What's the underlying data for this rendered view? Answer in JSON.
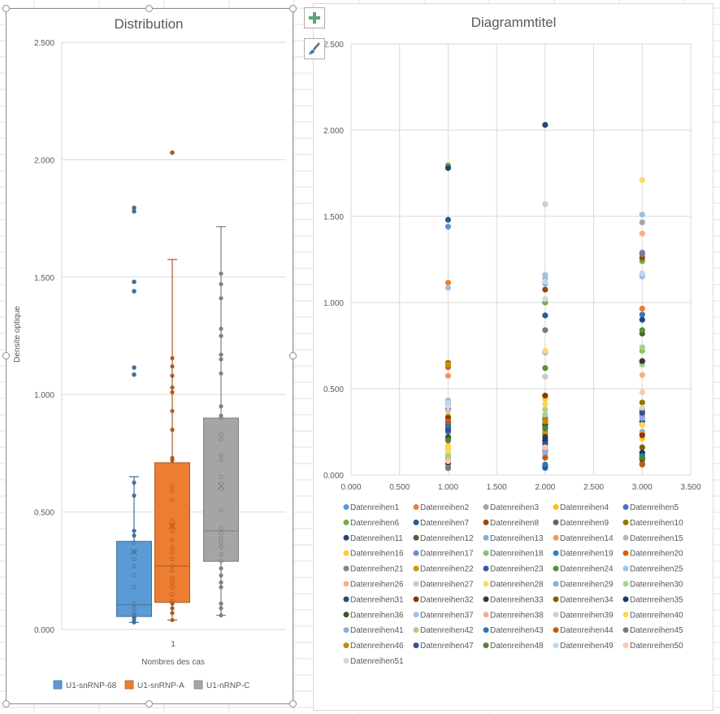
{
  "side_buttons": {
    "add_element": "chart-elements",
    "style": "chart-styles"
  },
  "chart_data": [
    {
      "type": "box",
      "title": "Distribution",
      "xlabel": "Nombres des cas",
      "ylabel": "Densite optique",
      "categories": [
        "1"
      ],
      "ylim": [
        0,
        2.5
      ],
      "yticks": [
        "0.000",
        "0.500",
        "1.000",
        "1.500",
        "2.000",
        "2.500"
      ],
      "grid": true,
      "legend_position": "bottom",
      "series": [
        {
          "name": "U1-snRNP-68",
          "color": "#5b9bd5",
          "stroke": "#41719c",
          "min": 0.03,
          "q1": 0.055,
          "median": 0.105,
          "q3": 0.375,
          "max": 0.65,
          "mean": 0.33,
          "outliers": [
            1.085,
            1.115,
            1.44,
            1.48,
            1.78,
            1.795
          ],
          "points": [
            0.03,
            0.04,
            0.05,
            0.06,
            0.07,
            0.09,
            0.11,
            0.18,
            0.23,
            0.27,
            0.3,
            0.33,
            0.37,
            0.4,
            0.42,
            0.57,
            0.625
          ]
        },
        {
          "name": "U1-snRNP-A",
          "color": "#ed7d31",
          "stroke": "#ae5a21",
          "min": 0.04,
          "q1": 0.115,
          "median": 0.27,
          "q3": 0.71,
          "max": 1.575,
          "mean": 0.44,
          "outliers": [
            2.03
          ],
          "points": [
            0.04,
            0.07,
            0.09,
            0.11,
            0.12,
            0.15,
            0.18,
            0.2,
            0.22,
            0.25,
            0.27,
            0.3,
            0.33,
            0.35,
            0.38,
            0.42,
            0.44,
            0.46,
            0.55,
            0.59,
            0.61,
            0.72,
            0.73,
            0.85,
            0.93,
            1.01,
            1.03,
            1.08,
            1.12,
            1.155
          ]
        },
        {
          "name": "U1-nRNP-C",
          "color": "#a5a5a5",
          "stroke": "#7f7f7f",
          "min": 0.06,
          "q1": 0.29,
          "median": 0.42,
          "q3": 0.9,
          "max": 1.715,
          "mean": 0.61,
          "outliers": [],
          "points": [
            0.06,
            0.09,
            0.11,
            0.18,
            0.2,
            0.23,
            0.26,
            0.29,
            0.32,
            0.35,
            0.37,
            0.39,
            0.41,
            0.43,
            0.51,
            0.6,
            0.62,
            0.65,
            0.72,
            0.74,
            0.81,
            0.83,
            0.9,
            0.91,
            0.95,
            1.09,
            1.15,
            1.17,
            1.25,
            1.28,
            1.41,
            1.47,
            1.515
          ]
        }
      ]
    },
    {
      "type": "scatter",
      "title": "Diagrammtitel",
      "xlabel": "",
      "ylabel": "",
      "xlim": [
        0,
        3.5
      ],
      "ylim": [
        0,
        2.5
      ],
      "xticks": [
        "0.000",
        "0.500",
        "1.000",
        "1.500",
        "2.000",
        "2.500",
        "3.000",
        "3.500"
      ],
      "yticks": [
        "0.000",
        "0.500",
        "1.000",
        "1.500",
        "2.000",
        "2.500"
      ],
      "grid": true,
      "legend_position": "bottom",
      "series": [
        {
          "name": "Datenreihen1",
          "color": "#5b9bd5",
          "points": [
            [
              1,
              0.15
            ],
            [
              2,
              0.33
            ],
            [
              3,
              0.35
            ]
          ]
        },
        {
          "name": "Datenreihen2",
          "color": "#ed7d31",
          "points": [
            [
              1,
              1.115
            ],
            [
              2,
              0.3
            ],
            [
              3,
              0.965
            ]
          ]
        },
        {
          "name": "Datenreihen3",
          "color": "#a5a5a5",
          "points": [
            [
              1,
              0.05
            ],
            [
              2,
              0.19
            ],
            [
              3,
              1.465
            ]
          ]
        },
        {
          "name": "Datenreihen4",
          "color": "#ffc000",
          "points": [
            [
              1,
              0.12
            ],
            [
              2,
              0.45
            ],
            [
              3,
              0.29
            ]
          ]
        },
        {
          "name": "Datenreihen5",
          "color": "#4472c4",
          "points": [
            [
              1,
              0.25
            ],
            [
              2,
              0.16
            ],
            [
              3,
              0.93
            ]
          ]
        },
        {
          "name": "Datenreihen6",
          "color": "#70ad47",
          "points": [
            [
              1,
              1.795
            ],
            [
              2,
              1.0
            ],
            [
              3,
              1.24
            ]
          ]
        },
        {
          "name": "Datenreihen7",
          "color": "#255e91",
          "points": [
            [
              1,
              1.48
            ],
            [
              2,
              0.925
            ],
            [
              3,
              0.37
            ]
          ]
        },
        {
          "name": "Datenreihen8",
          "color": "#9e480e",
          "points": [
            [
              1,
              0.29
            ],
            [
              2,
              1.075
            ],
            [
              3,
              1.26
            ]
          ]
        },
        {
          "name": "Datenreihen9",
          "color": "#636363",
          "points": [
            [
              1,
              0.07
            ],
            [
              2,
              0.24
            ],
            [
              3,
              0.66
            ]
          ]
        },
        {
          "name": "Datenreihen10",
          "color": "#997300",
          "points": [
            [
              1,
              0.65
            ],
            [
              2,
              0.27
            ],
            [
              3,
              0.42
            ]
          ]
        },
        {
          "name": "Datenreihen11",
          "color": "#264478",
          "points": [
            [
              1,
              1.78
            ],
            [
              2,
              2.03
            ],
            [
              3,
              0.9
            ]
          ]
        },
        {
          "name": "Datenreihen12",
          "color": "#43682b",
          "points": [
            [
              1,
              0.08
            ],
            [
              2,
              0.29
            ],
            [
              3,
              0.82
            ]
          ]
        },
        {
          "name": "Datenreihen13",
          "color": "#7cafdd",
          "points": [
            [
              1,
              0.43
            ],
            [
              2,
              1.11
            ],
            [
              3,
              0.25
            ]
          ]
        },
        {
          "name": "Datenreihen14",
          "color": "#f1975a",
          "points": [
            [
              1,
              0.575
            ],
            [
              2,
              0.21
            ],
            [
              3,
              0.24
            ]
          ]
        },
        {
          "name": "Datenreihen15",
          "color": "#b7b7b7",
          "points": [
            [
              1,
              0.38
            ],
            [
              2,
              1.14
            ],
            [
              3,
              1.16
            ]
          ]
        },
        {
          "name": "Datenreihen16",
          "color": "#ffcd33",
          "points": [
            [
              1,
              0.17
            ],
            [
              2,
              0.44
            ],
            [
              3,
              0.21
            ]
          ]
        },
        {
          "name": "Datenreihen17",
          "color": "#698ed0",
          "points": [
            [
              1,
              1.44
            ],
            [
              2,
              0.71
            ],
            [
              3,
              1.29
            ]
          ]
        },
        {
          "name": "Datenreihen18",
          "color": "#8cc168",
          "points": [
            [
              1,
              0.1
            ],
            [
              2,
              0.25
            ],
            [
              3,
              0.72
            ]
          ]
        },
        {
          "name": "Datenreihen19",
          "color": "#327dc2",
          "points": [
            [
              1,
              0.38
            ],
            [
              2,
              0.04
            ],
            [
              3,
              0.12
            ]
          ]
        },
        {
          "name": "Datenreihen20",
          "color": "#d26012",
          "points": [
            [
              1,
              0.625
            ],
            [
              2,
              0.32
            ],
            [
              3,
              0.065
            ]
          ]
        },
        {
          "name": "Datenreihen21",
          "color": "#848484",
          "points": [
            [
              1,
              0.04
            ],
            [
              2,
              0.12
            ],
            [
              3,
              0.66
            ]
          ]
        },
        {
          "name": "Datenreihen22",
          "color": "#cc9a00",
          "points": [
            [
              1,
              0.34
            ],
            [
              2,
              0.25
            ],
            [
              3,
              0.31
            ]
          ]
        },
        {
          "name": "Datenreihen23",
          "color": "#335aa1",
          "points": [
            [
              1,
              0.27
            ],
            [
              2,
              0.14
            ],
            [
              3,
              0.31
            ]
          ]
        },
        {
          "name": "Datenreihen24",
          "color": "#5a8f38",
          "points": [
            [
              1,
              0.21
            ],
            [
              2,
              0.62
            ],
            [
              3,
              0.84
            ]
          ]
        },
        {
          "name": "Datenreihen25",
          "color": "#9dc3e6",
          "points": [
            [
              1,
              0.42
            ],
            [
              2,
              0.71
            ],
            [
              3,
              1.15
            ]
          ]
        },
        {
          "name": "Datenreihen26",
          "color": "#f4b183",
          "points": [
            [
              1,
              0.09
            ],
            [
              2,
              0.1
            ],
            [
              3,
              0.58
            ]
          ]
        },
        {
          "name": "Datenreihen27",
          "color": "#c9c9c9",
          "points": [
            [
              1,
              0.37
            ],
            [
              2,
              0.57
            ],
            [
              3,
              0.35
            ]
          ]
        },
        {
          "name": "Datenreihen28",
          "color": "#ffd966",
          "points": [
            [
              1,
              0.14
            ],
            [
              2,
              0.72
            ],
            [
              3,
              1.71
            ]
          ]
        },
        {
          "name": "Datenreihen29",
          "color": "#8faadc",
          "points": [
            [
              1,
              0.06
            ],
            [
              2,
              0.15
            ],
            [
              3,
              0.33
            ]
          ]
        },
        {
          "name": "Datenreihen30",
          "color": "#a9d18e",
          "points": [
            [
              1,
              0.11
            ],
            [
              2,
              0.38
            ],
            [
              3,
              0.64
            ]
          ]
        },
        {
          "name": "Datenreihen31",
          "color": "#1f4e79",
          "points": [
            [
              1,
              0.3
            ],
            [
              2,
              0.05
            ],
            [
              3,
              0.1
            ]
          ]
        },
        {
          "name": "Datenreihen32",
          "color": "#843c0c",
          "points": [
            [
              1,
              0.33
            ],
            [
              2,
              0.46
            ],
            [
              3,
              0.23
            ]
          ]
        },
        {
          "name": "Datenreihen33",
          "color": "#3b3838",
          "points": [
            [
              1,
              0.07
            ],
            [
              2,
              0.22
            ],
            [
              3,
              0.66
            ]
          ]
        },
        {
          "name": "Datenreihen34",
          "color": "#7f6000",
          "points": [
            [
              1,
              0.41
            ],
            [
              2,
              0.27
            ],
            [
              3,
              0.16
            ]
          ]
        },
        {
          "name": "Datenreihen35",
          "color": "#203864",
          "points": [
            [
              1,
              0.08
            ],
            [
              2,
              0.2
            ],
            [
              3,
              0.13
            ]
          ]
        },
        {
          "name": "Datenreihen36",
          "color": "#385723",
          "points": [
            [
              1,
              0.22
            ],
            [
              2,
              0.29
            ],
            [
              3,
              0.09
            ]
          ]
        },
        {
          "name": "Datenreihen37",
          "color": "#9bc2e6",
          "points": [
            [
              1,
              1.085
            ],
            [
              2,
              1.16
            ],
            [
              3,
              1.51
            ]
          ]
        },
        {
          "name": "Datenreihen38",
          "color": "#f4b084",
          "points": [
            [
              1,
              0.1
            ],
            [
              2,
              0.12
            ],
            [
              3,
              1.4
            ]
          ]
        },
        {
          "name": "Datenreihen39",
          "color": "#d0cece",
          "points": [
            [
              1,
              0.31
            ],
            [
              2,
              1.57
            ],
            [
              3,
              0.37
            ]
          ]
        },
        {
          "name": "Datenreihen40",
          "color": "#ffd54f",
          "points": [
            [
              1,
              0.16
            ],
            [
              2,
              0.41
            ],
            [
              3,
              0.29
            ]
          ]
        },
        {
          "name": "Datenreihen41",
          "color": "#8eaadb",
          "points": [
            [
              1,
              0.09
            ],
            [
              2,
              0.13
            ],
            [
              3,
              0.34
            ]
          ]
        },
        {
          "name": "Datenreihen42",
          "color": "#a8d08d",
          "points": [
            [
              1,
              0.11
            ],
            [
              2,
              0.35
            ],
            [
              3,
              0.74
            ]
          ]
        },
        {
          "name": "Datenreihen43",
          "color": "#2e75b6",
          "points": [
            [
              1,
              0.28
            ],
            [
              2,
              0.06
            ],
            [
              3,
              0.11
            ]
          ]
        },
        {
          "name": "Datenreihen44",
          "color": "#c55a11",
          "points": [
            [
              1,
              0.31
            ],
            [
              2,
              0.1
            ],
            [
              3,
              0.06
            ]
          ]
        },
        {
          "name": "Datenreihen45",
          "color": "#7b7b7b",
          "points": [
            [
              1,
              0.04
            ],
            [
              2,
              0.84
            ],
            [
              3,
              1.28
            ]
          ]
        },
        {
          "name": "Datenreihen46",
          "color": "#bf9000",
          "points": [
            [
              1,
              0.64
            ],
            [
              2,
              0.31
            ],
            [
              3,
              0.38
            ]
          ]
        },
        {
          "name": "Datenreihen47",
          "color": "#2f5597",
          "points": [
            [
              1,
              0.26
            ],
            [
              2,
              0.18
            ],
            [
              3,
              0.36
            ]
          ]
        },
        {
          "name": "Datenreihen48",
          "color": "#548235",
          "points": [
            [
              1,
              0.2
            ],
            [
              2,
              0.27
            ],
            [
              3,
              0.1
            ]
          ]
        },
        {
          "name": "Datenreihen49",
          "color": "#bdd7ee",
          "points": [
            [
              1,
              0.42
            ],
            [
              2,
              1.12
            ],
            [
              3,
              1.17
            ]
          ]
        },
        {
          "name": "Datenreihen50",
          "color": "#f8cbad",
          "points": [
            [
              1,
              0.08
            ],
            [
              2,
              0.16
            ],
            [
              3,
              0.48
            ]
          ]
        },
        {
          "name": "Datenreihen51",
          "color": "#d6d6d6",
          "points": [
            [
              1,
              0.4
            ],
            [
              2,
              1.02
            ],
            [
              3,
              0.39
            ]
          ]
        }
      ]
    }
  ]
}
